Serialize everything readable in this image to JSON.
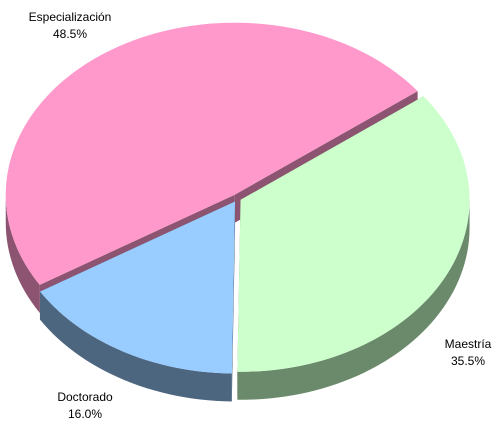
{
  "chart_data": {
    "type": "pie",
    "categories": [
      "Especialización",
      "Maestría",
      "Doctorado"
    ],
    "values": [
      48.5,
      35.5,
      16.0
    ],
    "value_labels": [
      "48.5%",
      "35.5%",
      "16.0%"
    ],
    "colors": [
      "#ff99cc",
      "#ccffcc",
      "#99ccff"
    ],
    "side_colors": [
      "#8c5470",
      "#6b8a6b",
      "#4d6680"
    ],
    "three_d": true
  }
}
